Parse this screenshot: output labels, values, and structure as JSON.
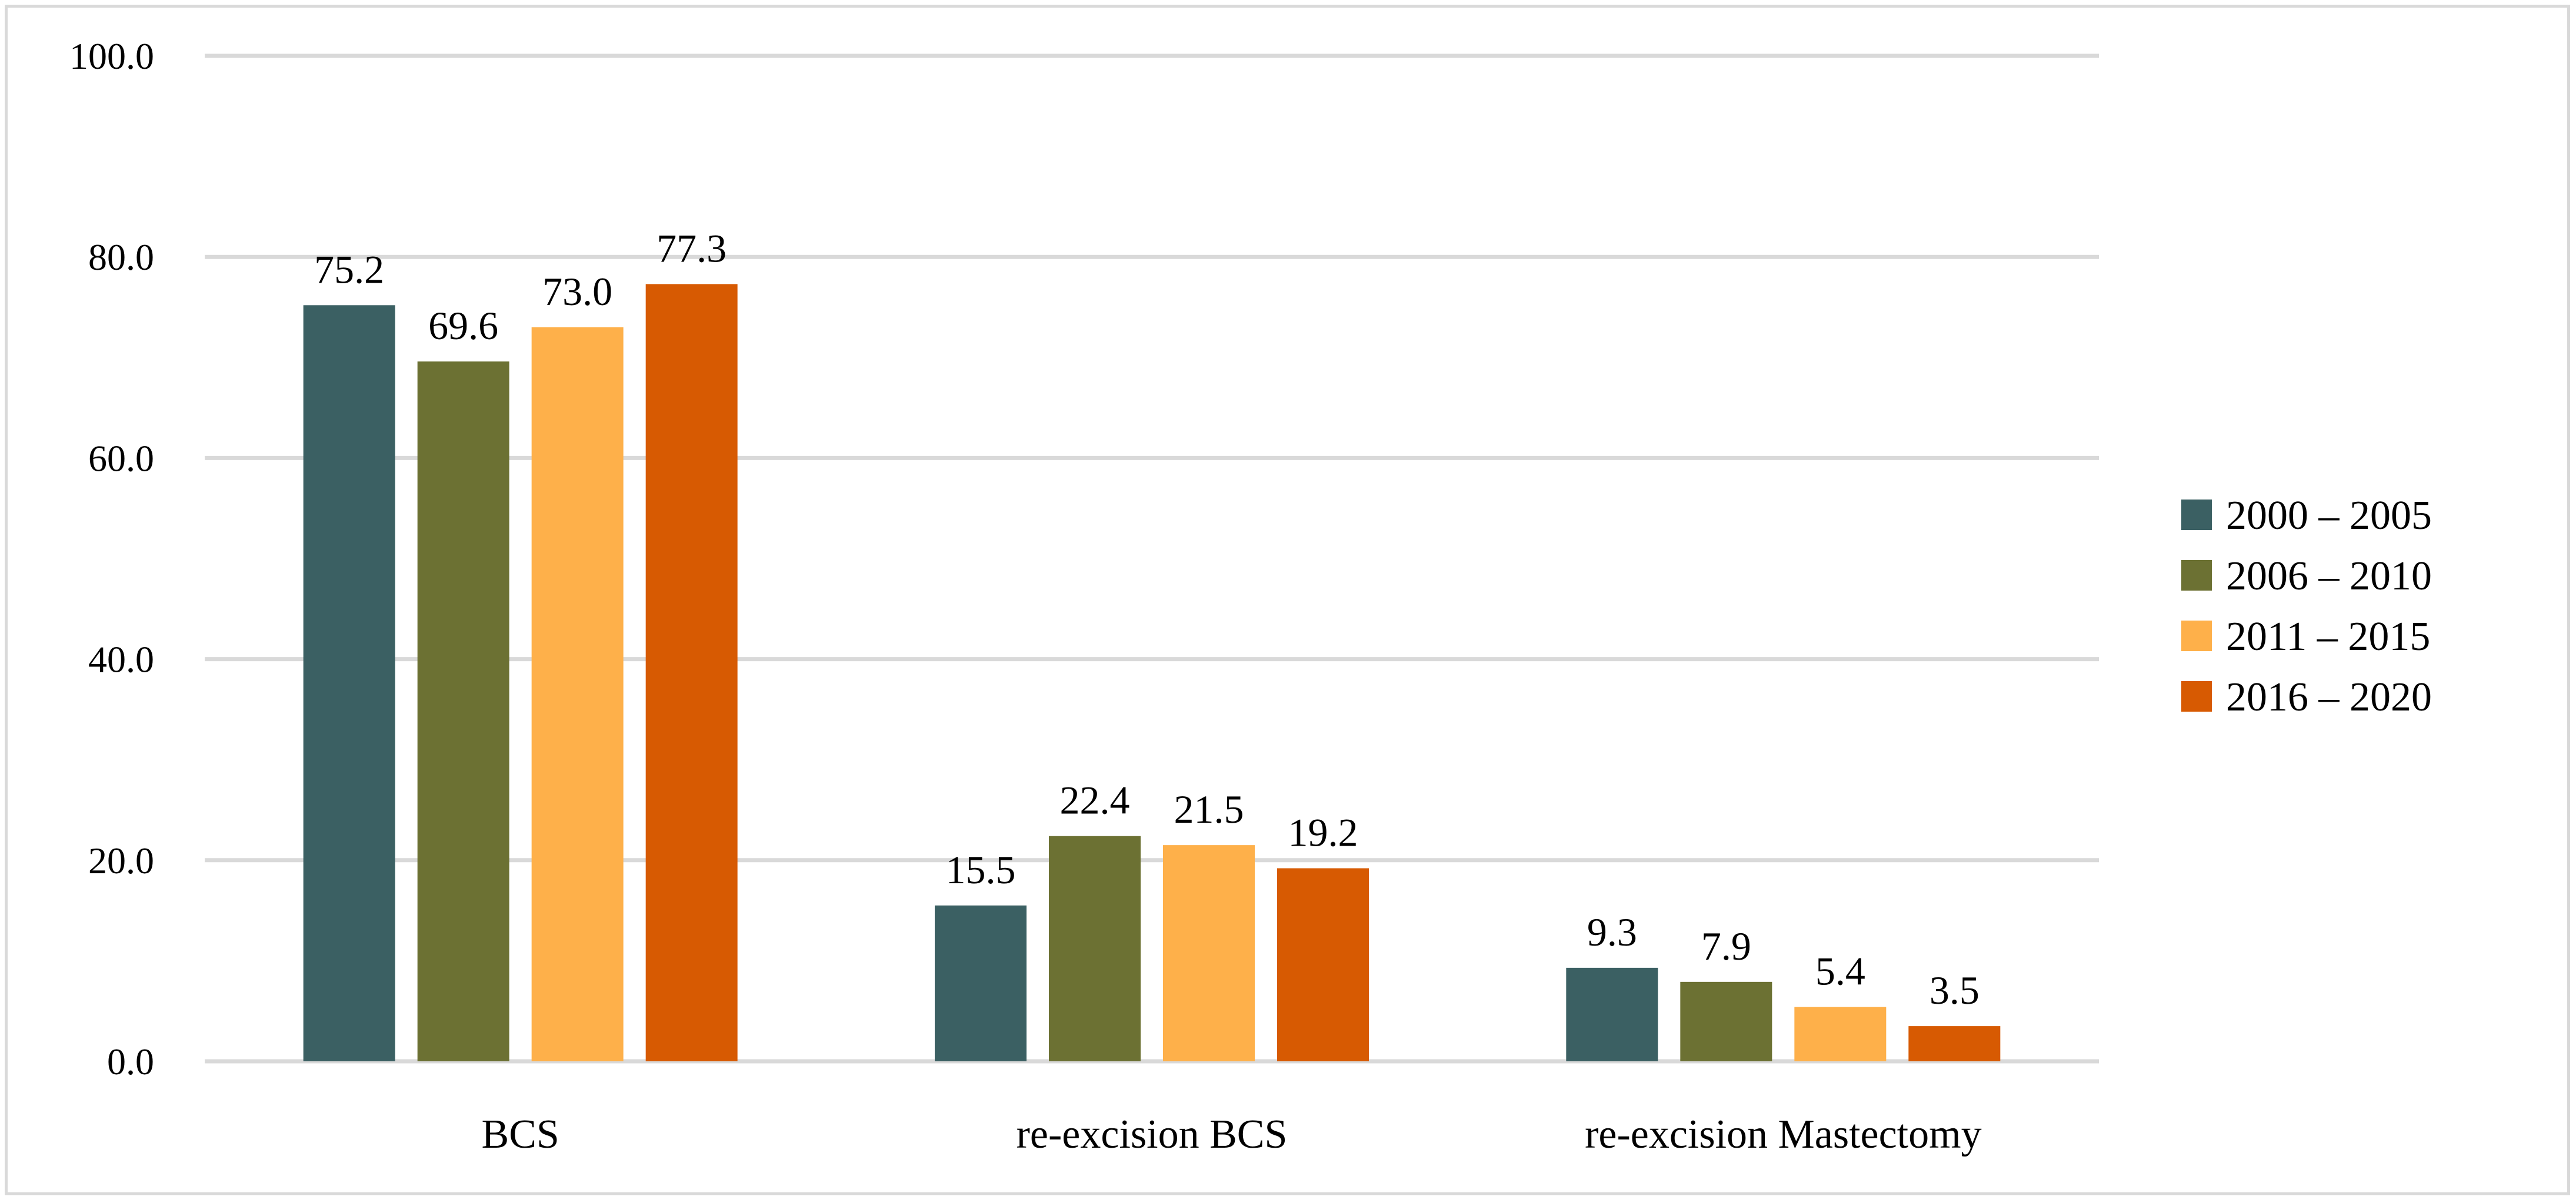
{
  "chart_data": {
    "type": "bar",
    "title": "",
    "xlabel": "",
    "ylabel": "",
    "ylim": [
      0,
      100
    ],
    "yticks": [
      "0.0",
      "20.0",
      "40.0",
      "60.0",
      "80.0",
      "100.0"
    ],
    "grid": true,
    "legend_position": "right",
    "categories": [
      "BCS",
      "re-excision BCS",
      "re-excision Mastectomy"
    ],
    "series": [
      {
        "name": "2000 – 2005",
        "color": "#3b6063",
        "values": [
          75.2,
          15.5,
          9.3
        ],
        "labels": [
          "75.2",
          "15.5",
          "9.3"
        ]
      },
      {
        "name": "2006 – 2010",
        "color": "#6c7133",
        "values": [
          69.6,
          22.4,
          7.9
        ],
        "labels": [
          "69.6",
          "22.4",
          "7.9"
        ]
      },
      {
        "name": "2011 – 2015",
        "color": "#feb04a",
        "values": [
          73.0,
          21.5,
          5.4
        ],
        "labels": [
          "73.0",
          "21.5",
          "5.4"
        ]
      },
      {
        "name": "2016 – 2020",
        "color": "#d75a02",
        "values": [
          77.3,
          19.2,
          3.5
        ],
        "labels": [
          "77.3",
          "19.2",
          "3.5"
        ]
      }
    ]
  }
}
